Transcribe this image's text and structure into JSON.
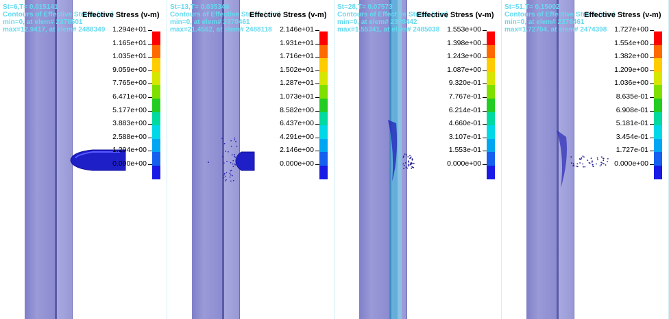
{
  "colorbar": [
    "#ff0000",
    "#ff6a00",
    "#ffcc00",
    "#d6e600",
    "#7fe000",
    "#22cc22",
    "#00d9a0",
    "#00d8e8",
    "#00a6f2",
    "#1560ee",
    "#1a1ae6"
  ],
  "panels": [
    {
      "step": "St=6,T=    0.015141",
      "contour": "Contours of Effective Stress (v-m)",
      "min": "min=0, at elem# 2378501",
      "max": "max=12.9417, at elem# 2488349",
      "title": "Effective Stress (v-m)",
      "ticks": [
        "1.294e+01",
        "1.165e+01",
        "1.035e+01",
        "9.059e+00",
        "7.765e+00",
        "6.471e+00",
        "5.177e+00",
        "3.883e+00",
        "2.588e+00",
        "1.294e+00",
        "0.000e+00"
      ]
    },
    {
      "step": "St=13,T=    0.035346",
      "contour": "Contours of Effective Stress (v-m)",
      "min": "min=0, at elem# 2378461",
      "max": "max=21.4562, at elem# 2488118",
      "title": "Effective Stress (v-m)",
      "ticks": [
        "2.146e+01",
        "1.931e+01",
        "1.716e+01",
        "1.502e+01",
        "1.287e+01",
        "1.073e+01",
        "8.582e+00",
        "6.437e+00",
        "4.291e+00",
        "2.146e+00",
        "0.000e+00"
      ]
    },
    {
      "step": "St=28,T=    0.07573",
      "contour": "Contours of Effective Stress (v-m)",
      "min": "min=0, at elem# 2378442",
      "max": "max=1.55341, at elem# 2485038",
      "title": "Effective Stress (v-m)",
      "ticks": [
        "1.553e+00",
        "1.398e+00",
        "1.243e+00",
        "1.087e+00",
        "9.320e-01",
        "7.767e-01",
        "6.214e-01",
        "4.660e-01",
        "3.107e-01",
        "1.553e-01",
        "0.000e+00"
      ]
    },
    {
      "step": "St=51,T=    0.15002",
      "contour": "Contours of Effective Stress (v-m)",
      "min": "min=0, at elem# 2378461",
      "max": "max=1.72704, at elem# 2474398",
      "title": "Effective Stress (v-m)",
      "ticks": [
        "1.727e+00",
        "1.554e+00",
        "1.382e+00",
        "1.209e+00",
        "1.036e+00",
        "8.635e-01",
        "6.908e-01",
        "5.181e-01",
        "3.454e-01",
        "1.727e-01",
        "0.000e+00"
      ]
    }
  ]
}
